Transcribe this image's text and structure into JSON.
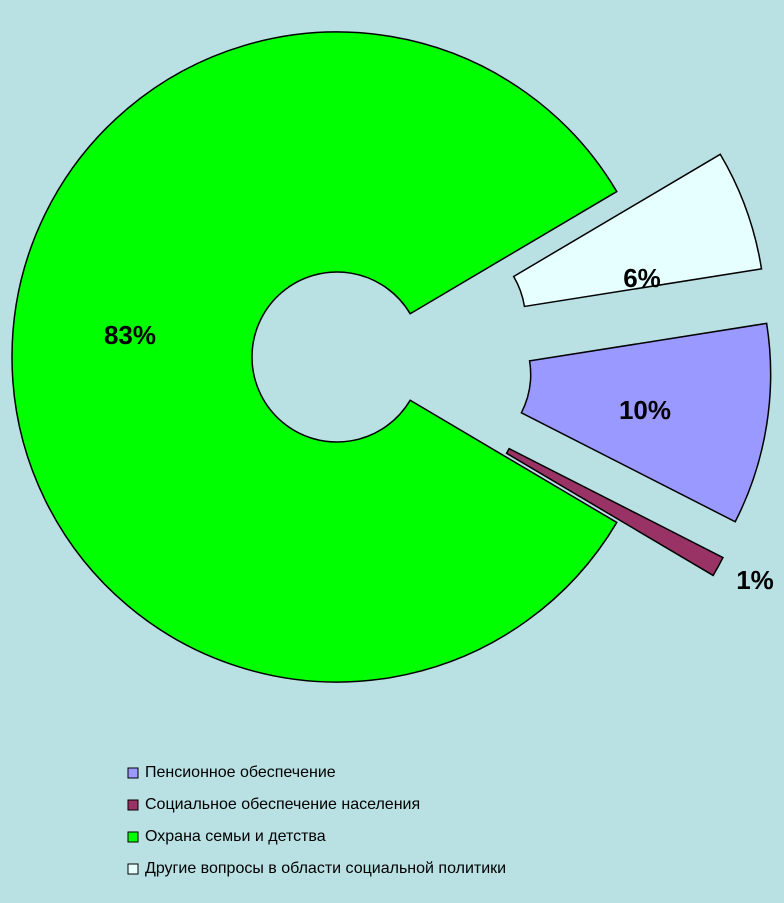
{
  "chart_data": {
    "type": "donut",
    "categories": [
      "Пенсионное обеспечение",
      "Социальное обеспечение населения",
      "Охрана семьи и детства",
      "Другие вопросы в области социальной политики"
    ],
    "values": [
      10,
      1,
      83,
      6
    ],
    "value_labels": [
      "10%",
      "1%",
      "83%",
      "6%"
    ],
    "colors": [
      "#9999ff",
      "#993366",
      "#00ff00",
      "#e6ffff"
    ]
  }
}
